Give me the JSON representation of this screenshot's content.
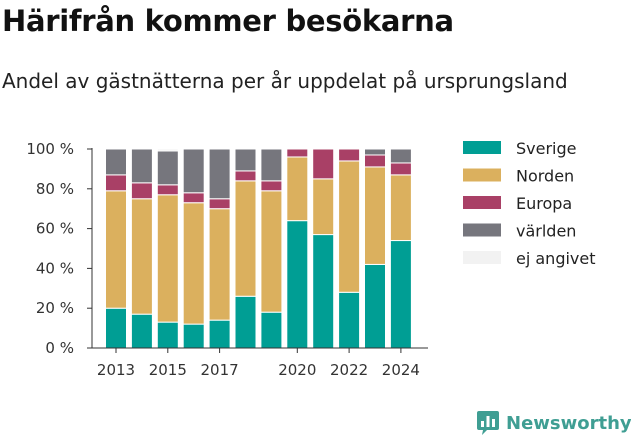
{
  "title": "Härifrån kommer besökarna",
  "subtitle": "Andel av gästnätterna per år uppdelat på ursprungsland",
  "brand": "Newsworthy",
  "colors": {
    "Sverige": "#009e94",
    "Norden": "#dbb05e",
    "Europa": "#a94066",
    "världen": "#76767d",
    "ej angivet": "#f2f2f2",
    "axis": "#333333"
  },
  "chart_data": {
    "type": "bar",
    "stacked": true,
    "categories": [
      "2013",
      "2014",
      "2015",
      "2016",
      "2017",
      "2018",
      "2019",
      "2020",
      "2021",
      "2022",
      "2023",
      "2024"
    ],
    "x_tick_labels": [
      "2013",
      "2015",
      "2017",
      "2020",
      "2022",
      "2024"
    ],
    "y_tick_labels": [
      "0 %",
      "20 %",
      "40 %",
      "60 %",
      "80 %",
      "100 %"
    ],
    "ylim": [
      0,
      100
    ],
    "legend_position": "right",
    "series": [
      {
        "name": "Sverige",
        "values": [
          20,
          17,
          13,
          12,
          14,
          26,
          18,
          64,
          57,
          28,
          42,
          54
        ]
      },
      {
        "name": "Norden",
        "values": [
          59,
          58,
          64,
          61,
          56,
          58,
          61,
          32,
          28,
          66,
          49,
          33
        ]
      },
      {
        "name": "Europa",
        "values": [
          8,
          8,
          5,
          5,
          5,
          5,
          5,
          4,
          15,
          6,
          6,
          6
        ]
      },
      {
        "name": "världen",
        "values": [
          13,
          17,
          17,
          22,
          25,
          11,
          16,
          0,
          0,
          0,
          3,
          7
        ]
      },
      {
        "name": "ej angivet",
        "values": [
          0,
          0,
          1,
          0,
          0,
          0,
          0,
          0,
          0,
          0,
          0,
          0
        ]
      }
    ]
  }
}
